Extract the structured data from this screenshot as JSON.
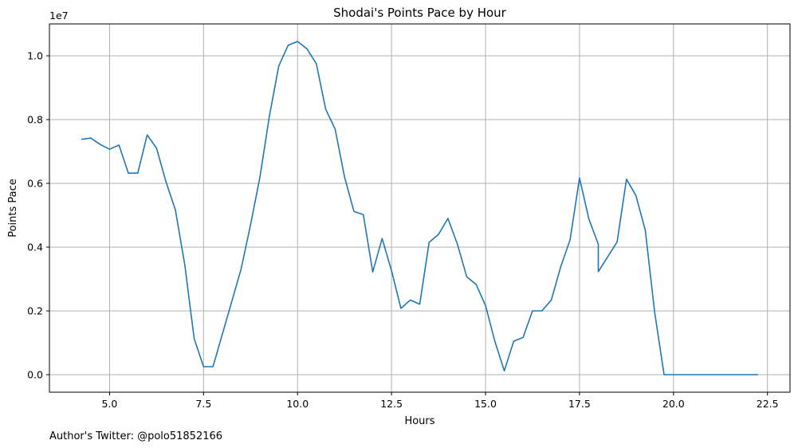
{
  "chart_data": {
    "type": "line",
    "title": "Shodai's Points Pace by Hour",
    "xlabel": "Hours",
    "ylabel": "Points Pace",
    "y_offset_label": "1e7",
    "footer": "Author's Twitter: @polo51852166",
    "xlim": [
      3.4,
      23.1
    ],
    "ylim": [
      -0.055,
      1.1
    ],
    "y_scale": 10000000,
    "grid": true,
    "line_color": "#1f77b4",
    "x_ticks": [
      5.0,
      7.5,
      10.0,
      12.5,
      15.0,
      17.5,
      20.0,
      22.5
    ],
    "x_tick_labels": [
      "5.0",
      "7.5",
      "10.0",
      "12.5",
      "15.0",
      "17.5",
      "20.0",
      "22.5"
    ],
    "y_ticks": [
      0.0,
      0.2,
      0.4,
      0.6,
      0.8,
      1.0
    ],
    "y_tick_labels": [
      "0.0",
      "0.2",
      "0.4",
      "0.6",
      "0.8",
      "1.0"
    ],
    "series": [
      {
        "x": [
          4.25,
          4.5,
          4.75,
          5.0,
          5.25,
          5.5,
          5.75,
          6.0,
          6.25,
          6.5,
          6.75,
          7.0,
          7.25,
          7.5,
          7.75,
          8.0,
          8.25,
          8.5,
          8.75,
          9.0,
          9.25,
          9.5,
          9.75,
          10.0,
          10.25,
          10.5,
          10.75,
          11.0,
          11.25,
          11.5,
          11.75,
          12.0,
          12.25,
          12.5,
          12.75,
          13.0,
          13.25,
          13.5,
          13.75,
          14.0,
          14.25,
          14.5,
          14.75,
          15.0,
          15.25,
          15.5,
          15.75,
          16.0,
          16.25,
          16.5,
          16.75,
          17.0,
          17.25,
          17.5,
          17.75,
          18.0,
          18.0,
          18.5,
          18.75,
          19.0,
          19.25,
          19.5,
          19.75,
          20.0,
          20.5,
          21.0,
          21.5,
          22.0,
          22.25
        ],
        "y": [
          0.738,
          0.742,
          0.722,
          0.707,
          0.72,
          0.632,
          0.632,
          0.752,
          0.71,
          0.605,
          0.517,
          0.345,
          0.113,
          0.025,
          0.025,
          0.127,
          0.229,
          0.332,
          0.47,
          0.62,
          0.81,
          0.968,
          1.033,
          1.045,
          1.022,
          0.975,
          0.832,
          0.77,
          0.62,
          0.512,
          0.502,
          0.322,
          0.427,
          0.326,
          0.208,
          0.234,
          0.221,
          0.415,
          0.44,
          0.49,
          0.41,
          0.307,
          0.283,
          0.217,
          0.104,
          0.012,
          0.105,
          0.117,
          0.2,
          0.2,
          0.234,
          0.338,
          0.423,
          0.617,
          0.488,
          0.409,
          0.323,
          0.416,
          0.613,
          0.562,
          0.453,
          0.195,
          0.0,
          0.0,
          0.0,
          0.0,
          0.0,
          0.0,
          0.0
        ]
      }
    ]
  }
}
